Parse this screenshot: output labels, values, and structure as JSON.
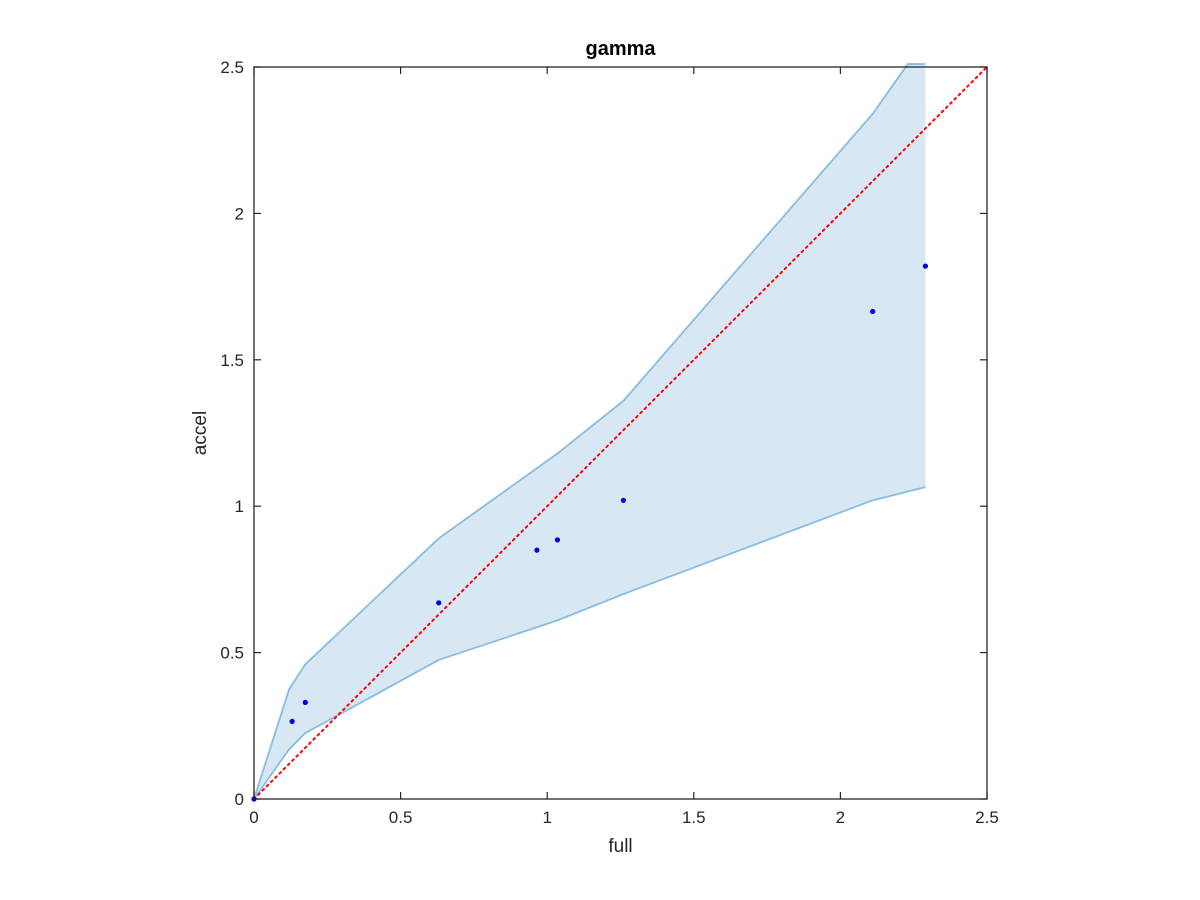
{
  "chart_data": {
    "type": "scatter",
    "title": "gamma",
    "xlabel": "full",
    "ylabel": "accel",
    "xlim": [
      0,
      2.5
    ],
    "ylim": [
      0,
      2.5
    ],
    "xticks": [
      "0",
      "0.5",
      "1",
      "1.5",
      "2",
      "2.5"
    ],
    "yticks": [
      "0",
      "0.5",
      "1",
      "1.5",
      "2",
      "2.5"
    ],
    "grid": false,
    "series": [
      {
        "kind": "points",
        "x": [
          0,
          0.13,
          0.175,
          0.63,
          0.965,
          1.035,
          1.26,
          2.11,
          2.29
        ],
        "y": [
          0,
          0.265,
          0.33,
          0.67,
          0.85,
          0.885,
          1.02,
          1.665,
          1.82
        ]
      },
      {
        "kind": "band",
        "x": [
          0,
          0.12,
          0.175,
          0.63,
          1.035,
          1.26,
          2.11,
          2.23,
          2.29
        ],
        "upper": [
          0,
          0.375,
          0.46,
          0.89,
          1.18,
          1.36,
          2.34,
          2.51,
          2.51
        ],
        "lower": [
          0,
          0.17,
          0.225,
          0.475,
          0.61,
          0.7,
          1.02,
          1.05,
          1.065
        ]
      },
      {
        "kind": "reference-line",
        "x": [
          0,
          2.5
        ],
        "y": [
          0,
          2.5
        ]
      }
    ],
    "colors": {
      "points": "#0000e6",
      "band_fill": "#d7e8f4",
      "band_edge": "#87bde0",
      "reference_line": "#ff0000",
      "axes": "#262626"
    }
  }
}
